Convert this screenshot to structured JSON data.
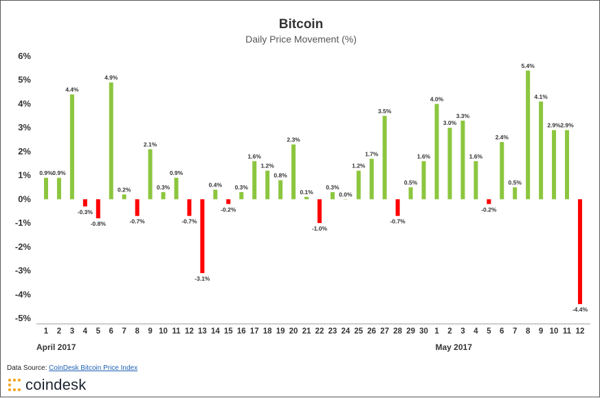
{
  "chart_data": {
    "type": "bar",
    "title": "Bitcoin",
    "subtitle": "Daily Price Movement (%)",
    "xlabel": "",
    "ylabel": "",
    "ylim": [
      -5,
      6
    ],
    "yticks": [
      "6%",
      "5%",
      "4%",
      "3%",
      "2%",
      "1%",
      "0%",
      "-1%",
      "-2%",
      "-3%",
      "-4%",
      "-5%"
    ],
    "grid": false,
    "legend": "none",
    "categories": [
      "1",
      "2",
      "3",
      "4",
      "5",
      "6",
      "7",
      "8",
      "9",
      "10",
      "11",
      "12",
      "13",
      "14",
      "15",
      "16",
      "17",
      "18",
      "19",
      "20",
      "21",
      "22",
      "23",
      "24",
      "25",
      "26",
      "27",
      "28",
      "29",
      "30",
      "1",
      "2",
      "3",
      "4",
      "5",
      "6",
      "7",
      "8",
      "9",
      "10",
      "11",
      "12"
    ],
    "values": [
      0.9,
      0.9,
      4.4,
      -0.3,
      -0.8,
      4.9,
      0.2,
      -0.7,
      2.1,
      0.3,
      0.9,
      -0.7,
      -3.1,
      0.4,
      -0.2,
      0.3,
      1.6,
      1.2,
      0.8,
      2.3,
      0.1,
      -1.0,
      0.3,
      0.0,
      1.2,
      1.7,
      3.5,
      -0.7,
      0.5,
      1.6,
      4.0,
      3.0,
      3.3,
      1.6,
      -0.2,
      2.4,
      0.5,
      5.4,
      4.1,
      2.9,
      2.9,
      -4.4
    ],
    "data_labels": [
      "0.9%",
      "0.9%",
      "4.4%",
      "-0.3%",
      "-0.8%",
      "4.9%",
      "0.2%",
      "-0.7%",
      "2.1%",
      "0.3%",
      "0.9%",
      "-0.7%",
      "-3.1%",
      "0.4%",
      "-0.2%",
      "0.3%",
      "1.6%",
      "1.2%",
      "0.8%",
      "2.3%",
      "0.1%",
      "-1.0%",
      "0.3%",
      "0.0%",
      "1.2%",
      "1.7%",
      "3.5%",
      "-0.7%",
      "0.5%",
      "1.6%",
      "4.0%",
      "3.0%",
      "3.3%",
      "1.6%",
      "-0.2%",
      "2.4%",
      "0.5%",
      "5.4%",
      "4.1%",
      "2.9%",
      "2.9%",
      "-4.4%"
    ],
    "month_labels": [
      {
        "label": "April 2017",
        "at_index": 0
      },
      {
        "label": "May 2017",
        "at_index": 30
      }
    ],
    "colors": {
      "positive": "#8cc63f",
      "negative": "#ff0000",
      "axis": "#999999",
      "text": "#333333"
    }
  },
  "footer": {
    "source_prefix": "Data Source: ",
    "source_link": "CoinDesk Bitcoin Price Index",
    "brand_name": "coindesk",
    "brand_icon": "coindesk-logo-icon",
    "brand_color": "#f5a623"
  }
}
